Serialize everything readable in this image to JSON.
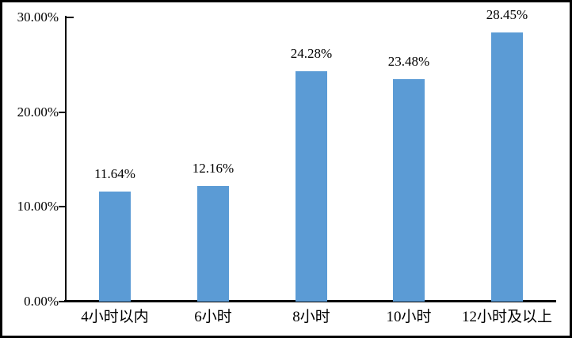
{
  "chart_data": {
    "type": "bar",
    "categories": [
      "4小时以内",
      "6小时",
      "8小时",
      "10小时",
      "12小时及以上"
    ],
    "values": [
      11.64,
      12.16,
      24.28,
      23.48,
      28.45
    ],
    "data_labels": [
      "11.64%",
      "12.16%",
      "24.28%",
      "23.48%",
      "28.45%"
    ],
    "title": "",
    "xlabel": "",
    "ylabel": "",
    "ylim": [
      0,
      30
    ],
    "yticks": [
      0,
      10,
      20,
      30
    ],
    "ytick_labels": [
      "0.00%",
      "10.00%",
      "20.00%",
      "30.00%"
    ],
    "grid": false,
    "legend": false,
    "bar_color": "#5B9BD5",
    "axis_color": "#000000",
    "border_color": "#000000",
    "background_color": "#FFFFFF"
  }
}
